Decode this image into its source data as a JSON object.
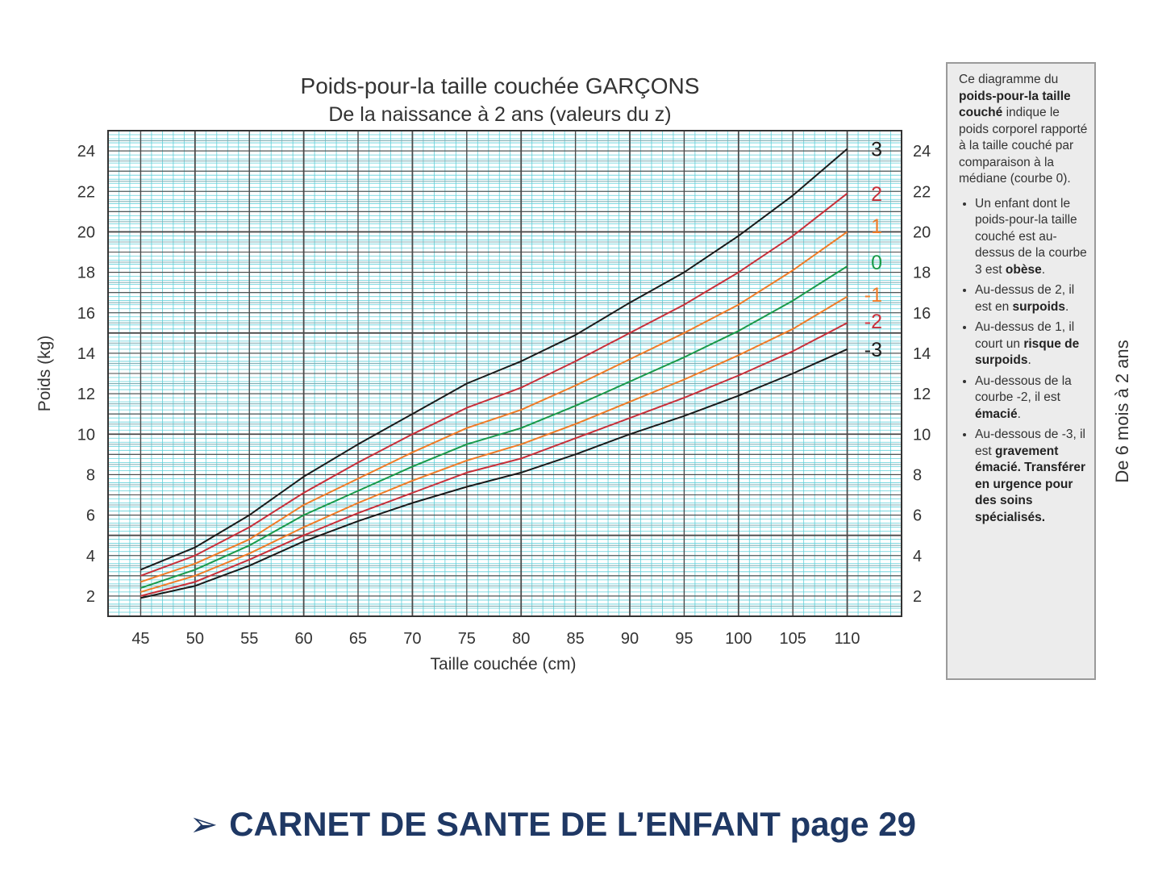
{
  "chart_data": {
    "type": "line",
    "title": "Poids-pour-la taille couchée GARÇONS",
    "subtitle": "De la naissance à 2 ans (valeurs du z)",
    "xlabel": "Taille couchée (cm)",
    "ylabel": "Poids (kg)",
    "xlim": [
      42,
      115
    ],
    "ylim": [
      1,
      25
    ],
    "x_ticks": [
      45,
      50,
      55,
      60,
      65,
      70,
      75,
      80,
      85,
      90,
      95,
      100,
      105,
      110
    ],
    "y_ticks": [
      2,
      4,
      6,
      8,
      10,
      12,
      14,
      16,
      18,
      20,
      22,
      24
    ],
    "grid": true,
    "x": [
      45,
      50,
      55,
      60,
      65,
      70,
      75,
      80,
      85,
      90,
      95,
      100,
      105,
      110
    ],
    "series": [
      {
        "name": "3",
        "color": "#1a1a1a",
        "values": [
          3.3,
          4.4,
          6.0,
          7.9,
          9.5,
          11.0,
          12.5,
          13.6,
          14.9,
          16.5,
          18.0,
          19.8,
          21.8,
          24.1
        ]
      },
      {
        "name": "2",
        "color": "#c8303a",
        "values": [
          3.0,
          4.0,
          5.4,
          7.1,
          8.6,
          10.0,
          11.3,
          12.3,
          13.6,
          15.0,
          16.4,
          18.0,
          19.8,
          21.9
        ]
      },
      {
        "name": "1",
        "color": "#f07c28",
        "values": [
          2.7,
          3.6,
          4.8,
          6.5,
          7.8,
          9.1,
          10.3,
          11.2,
          12.4,
          13.7,
          15.0,
          16.4,
          18.1,
          20.0
        ]
      },
      {
        "name": "0",
        "color": "#1a9a4a",
        "values": [
          2.4,
          3.3,
          4.5,
          6.0,
          7.2,
          8.4,
          9.5,
          10.3,
          11.4,
          12.6,
          13.8,
          15.1,
          16.6,
          18.3
        ]
      },
      {
        "name": "-1",
        "color": "#f07c28",
        "values": [
          2.2,
          3.0,
          4.1,
          5.4,
          6.6,
          7.7,
          8.7,
          9.5,
          10.5,
          11.6,
          12.7,
          13.9,
          15.2,
          16.8
        ]
      },
      {
        "name": "-2",
        "color": "#c8303a",
        "values": [
          2.0,
          2.7,
          3.8,
          5.0,
          6.1,
          7.1,
          8.1,
          8.8,
          9.8,
          10.8,
          11.8,
          12.9,
          14.1,
          15.5
        ]
      },
      {
        "name": "-3",
        "color": "#1a1a1a",
        "values": [
          1.9,
          2.5,
          3.5,
          4.7,
          5.7,
          6.6,
          7.4,
          8.1,
          9.0,
          10.0,
          10.9,
          11.9,
          13.0,
          14.2
        ]
      }
    ]
  },
  "colors": {
    "grid_minor": "#5ecfd9",
    "grid_major": "#4a4a4a",
    "footer_text": "#1f3864",
    "info_box_bg": "#ececec"
  },
  "info_box": {
    "intro_pre": "Ce diagramme du ",
    "intro_bold": "poids-pour-la taille couché",
    "intro_post": " indique le poids corporel rapporté à la taille couché par comparaison à la médiane (courbe 0).",
    "items": [
      {
        "pre": "Un enfant dont le poids-pour-la taille couché est au-dessus de la courbe 3 est ",
        "bold": "obèse",
        "post": "."
      },
      {
        "pre": "Au-dessus de 2, il est en ",
        "bold": "surpoids",
        "post": "."
      },
      {
        "pre": "Au-dessus de 1, il court un ",
        "bold": "risque de surpoids",
        "post": "."
      },
      {
        "pre": "Au-dessous de la courbe -2, il est ",
        "bold": "émacié",
        "post": "."
      },
      {
        "pre": "Au-dessous de -3, il est ",
        "bold": "gravement émacié. Transférer en urgence pour des soins spécialisés.",
        "post": ""
      }
    ]
  },
  "side_caption": "De 6 mois à 2 ans",
  "footer": {
    "arrow": "➢",
    "text": "CARNET DE SANTE DE L’ENFANT page 29"
  }
}
